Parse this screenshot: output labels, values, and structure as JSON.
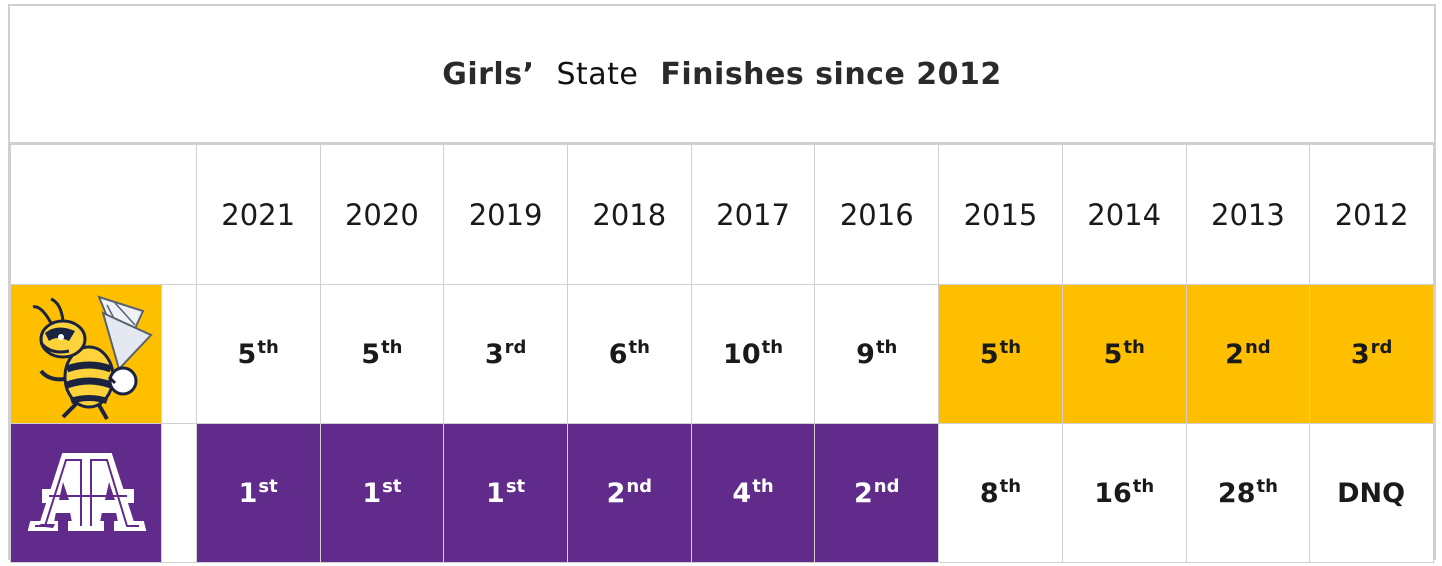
{
  "title": {
    "part1": "Girls’",
    "part2": "State",
    "part3": "Finishes since 2012"
  },
  "years": [
    "2021",
    "2020",
    "2019",
    "2018",
    "2017",
    "2016",
    "2015",
    "2014",
    "2013",
    "2012"
  ],
  "rows": [
    {
      "team_icon": "yellow-jacket-mascot-icon",
      "logo_color": "#fdbf00",
      "results": [
        {
          "num": "5",
          "suf": "th",
          "fill": "white"
        },
        {
          "num": "5",
          "suf": "th",
          "fill": "white"
        },
        {
          "num": "3",
          "suf": "rd",
          "fill": "white"
        },
        {
          "num": "6",
          "suf": "th",
          "fill": "white"
        },
        {
          "num": "10",
          "suf": "th",
          "fill": "white"
        },
        {
          "num": "9",
          "suf": "th",
          "fill": "white"
        },
        {
          "num": "5",
          "suf": "th",
          "fill": "gold"
        },
        {
          "num": "5",
          "suf": "th",
          "fill": "gold"
        },
        {
          "num": "2",
          "suf": "nd",
          "fill": "gold"
        },
        {
          "num": "3",
          "suf": "rd",
          "fill": "gold"
        }
      ]
    },
    {
      "team_icon": "aa-block-letters-icon",
      "logo_color": "#612b8c",
      "results": [
        {
          "num": "1",
          "suf": "st",
          "fill": "purple"
        },
        {
          "num": "1",
          "suf": "st",
          "fill": "purple"
        },
        {
          "num": "1",
          "suf": "st",
          "fill": "purple"
        },
        {
          "num": "2",
          "suf": "nd",
          "fill": "purple"
        },
        {
          "num": "4",
          "suf": "th",
          "fill": "purple"
        },
        {
          "num": "2",
          "suf": "nd",
          "fill": "purple"
        },
        {
          "num": "8",
          "suf": "th",
          "fill": "white"
        },
        {
          "num": "16",
          "suf": "th",
          "fill": "white"
        },
        {
          "num": "28",
          "suf": "th",
          "fill": "white"
        },
        {
          "num": "DNQ",
          "suf": "",
          "fill": "white"
        }
      ]
    }
  ],
  "colors": {
    "gold": "#fdbf00",
    "purple": "#612b8c",
    "border": "#d0d0d0"
  }
}
